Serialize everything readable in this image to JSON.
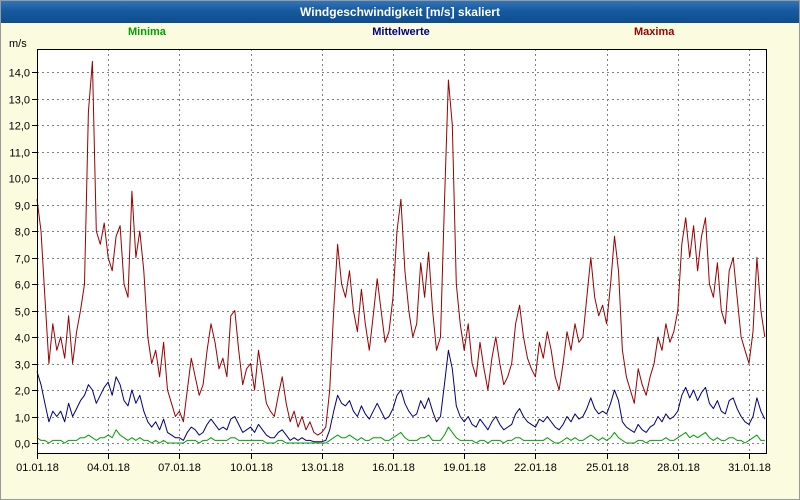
{
  "window": {
    "title": "Windgeschwindigkeit [m/s] skaliert"
  },
  "colors": {
    "titlebar_blue": "#155a9e",
    "page_background": "#fbfbe0",
    "plot_background": "#ffffff",
    "grid": "#808080",
    "axis": "#000000",
    "minima_green": "#00a000",
    "mittelwerte_blue": "#000080",
    "maxima_red": "#990000"
  },
  "chart_data": {
    "type": "line",
    "title": "Windgeschwindigkeit [m/s] skaliert",
    "legend_position": "top",
    "grid": "dashed",
    "sample_step_days": 0.1666667,
    "y_axis": {
      "unit_label": "m/s",
      "min": 0,
      "max": 14,
      "step": 1,
      "tick_labels": [
        "0,0",
        "1,0",
        "2,0",
        "3,0",
        "4,0",
        "5,0",
        "6,0",
        "7,0",
        "8,0",
        "9,0",
        "10,0",
        "11,0",
        "12,0",
        "13,0",
        "14,0"
      ]
    },
    "x_axis": {
      "tick_labels": [
        "01.01.18",
        "04.01.18",
        "07.01.18",
        "10.01.18",
        "13.01.18",
        "16.01.18",
        "19.01.18",
        "22.01.18",
        "25.01.18",
        "28.01.18",
        "31.01.18"
      ],
      "tick_days": [
        0,
        3,
        6,
        9,
        12,
        15,
        18,
        21,
        24,
        27,
        30
      ],
      "span_days": 30.76
    },
    "series": [
      {
        "name": "Minima",
        "color": "#00a000",
        "values": [
          0.2,
          0.1,
          0.1,
          0.0,
          0.1,
          0.1,
          0.1,
          0.0,
          0.1,
          0.1,
          0.1,
          0.2,
          0.2,
          0.3,
          0.2,
          0.1,
          0.2,
          0.2,
          0.3,
          0.2,
          0.5,
          0.3,
          0.2,
          0.1,
          0.2,
          0.1,
          0.2,
          0.1,
          0.1,
          0.0,
          0.1,
          0.0,
          0.1,
          0.0,
          0.0,
          0.0,
          0.0,
          0.0,
          0.1,
          0.1,
          0.1,
          0.0,
          0.1,
          0.1,
          0.2,
          0.1,
          0.1,
          0.1,
          0.1,
          0.2,
          0.2,
          0.1,
          0.1,
          0.1,
          0.1,
          0.1,
          0.1,
          0.1,
          0.0,
          0.0,
          0.0,
          0.1,
          0.1,
          0.0,
          0.0,
          0.0,
          0.0,
          0.0,
          0.0,
          0.0,
          0.0,
          0.0,
          0.0,
          0.0,
          0.1,
          0.2,
          0.3,
          0.2,
          0.2,
          0.3,
          0.2,
          0.1,
          0.2,
          0.1,
          0.1,
          0.2,
          0.2,
          0.2,
          0.1,
          0.1,
          0.2,
          0.3,
          0.4,
          0.2,
          0.1,
          0.1,
          0.1,
          0.2,
          0.2,
          0.3,
          0.1,
          0.1,
          0.1,
          0.3,
          0.6,
          0.4,
          0.2,
          0.1,
          0.1,
          0.1,
          0.1,
          0.0,
          0.1,
          0.1,
          0.0,
          0.1,
          0.1,
          0.1,
          0.0,
          0.1,
          0.1,
          0.2,
          0.2,
          0.1,
          0.1,
          0.1,
          0.1,
          0.1,
          0.1,
          0.2,
          0.1,
          0.0,
          0.0,
          0.1,
          0.2,
          0.1,
          0.2,
          0.1,
          0.1,
          0.2,
          0.3,
          0.2,
          0.1,
          0.2,
          0.1,
          0.2,
          0.4,
          0.2,
          0.1,
          0.0,
          0.0,
          0.0,
          0.1,
          0.1,
          0.0,
          0.1,
          0.1,
          0.1,
          0.1,
          0.2,
          0.1,
          0.1,
          0.2,
          0.3,
          0.4,
          0.2,
          0.3,
          0.2,
          0.3,
          0.4,
          0.2,
          0.1,
          0.2,
          0.1,
          0.1,
          0.2,
          0.2,
          0.1,
          0.1,
          0.0,
          0.1,
          0.2,
          0.3,
          0.1,
          0.1
        ]
      },
      {
        "name": "Mittelwerte",
        "color": "#000080",
        "values": [
          2.7,
          2.2,
          1.5,
          0.8,
          1.2,
          1.0,
          1.2,
          0.8,
          1.5,
          1.0,
          1.3,
          1.6,
          1.8,
          2.2,
          2.0,
          1.5,
          1.8,
          2.1,
          2.3,
          1.8,
          2.5,
          2.2,
          1.6,
          1.4,
          2.0,
          1.5,
          1.8,
          1.2,
          0.8,
          0.6,
          0.8,
          0.5,
          0.9,
          0.4,
          0.3,
          0.2,
          0.2,
          0.1,
          0.4,
          0.6,
          0.5,
          0.3,
          0.4,
          0.7,
          0.9,
          0.7,
          0.5,
          0.6,
          0.5,
          0.9,
          1.0,
          0.7,
          0.4,
          0.5,
          0.6,
          0.4,
          0.7,
          0.5,
          0.3,
          0.2,
          0.2,
          0.4,
          0.5,
          0.3,
          0.1,
          0.2,
          0.1,
          0.2,
          0.1,
          0.1,
          0.05,
          0.05,
          0.05,
          0.1,
          0.5,
          1.2,
          1.8,
          1.5,
          1.4,
          1.6,
          1.2,
          1.0,
          1.4,
          1.1,
          0.9,
          1.2,
          1.5,
          1.2,
          0.9,
          1.0,
          1.3,
          1.8,
          2.0,
          1.5,
          1.2,
          1.0,
          1.1,
          1.6,
          1.3,
          1.7,
          1.2,
          0.8,
          1.0,
          2.2,
          3.5,
          2.8,
          1.4,
          1.0,
          0.8,
          1.0,
          0.7,
          0.6,
          0.9,
          0.7,
          0.5,
          0.8,
          1.0,
          0.7,
          0.5,
          0.6,
          0.7,
          1.1,
          1.3,
          1.0,
          0.8,
          0.7,
          0.6,
          0.9,
          0.8,
          1.0,
          0.8,
          0.6,
          0.5,
          0.7,
          1.0,
          0.8,
          1.1,
          0.9,
          1.0,
          1.3,
          1.7,
          1.3,
          1.1,
          1.2,
          1.1,
          1.5,
          2.0,
          1.6,
          0.8,
          0.6,
          0.5,
          0.4,
          0.7,
          0.5,
          0.4,
          0.6,
          0.7,
          1.0,
          0.8,
          1.1,
          0.9,
          1.0,
          1.2,
          1.8,
          2.1,
          1.7,
          2.0,
          1.6,
          1.9,
          2.1,
          1.5,
          1.3,
          1.6,
          1.2,
          1.1,
          1.6,
          1.7,
          1.3,
          1.0,
          0.8,
          0.7,
          1.0,
          1.7,
          1.2,
          0.9
        ]
      },
      {
        "name": "Maxima",
        "color": "#990000",
        "values": [
          9.2,
          8.0,
          5.5,
          3.0,
          4.5,
          3.5,
          4.0,
          3.2,
          4.8,
          3.0,
          4.2,
          5.0,
          6.0,
          12.5,
          14.4,
          8.0,
          7.5,
          8.3,
          7.0,
          6.5,
          7.8,
          8.2,
          6.0,
          5.5,
          9.5,
          7.0,
          8.0,
          6.5,
          4.0,
          3.0,
          3.5,
          2.5,
          3.8,
          2.0,
          1.5,
          1.0,
          1.2,
          0.8,
          2.0,
          3.2,
          2.5,
          1.8,
          2.2,
          3.5,
          4.5,
          3.8,
          2.8,
          3.2,
          2.5,
          4.8,
          5.0,
          3.5,
          2.2,
          2.8,
          3.0,
          2.0,
          3.5,
          2.5,
          1.5,
          1.2,
          1.0,
          1.8,
          2.5,
          1.5,
          0.8,
          1.2,
          0.6,
          1.0,
          0.5,
          0.8,
          0.4,
          0.3,
          0.4,
          0.6,
          2.0,
          5.0,
          7.5,
          6.0,
          5.5,
          6.5,
          5.0,
          4.2,
          5.8,
          4.5,
          3.5,
          4.8,
          6.2,
          5.0,
          3.8,
          4.2,
          5.5,
          8.0,
          9.2,
          6.5,
          5.0,
          4.0,
          4.5,
          6.8,
          5.5,
          7.2,
          5.0,
          3.5,
          4.0,
          9.0,
          13.7,
          12.0,
          6.0,
          4.5,
          3.5,
          4.5,
          3.0,
          2.5,
          3.8,
          2.8,
          2.0,
          3.2,
          4.0,
          3.0,
          2.2,
          2.5,
          3.0,
          4.5,
          5.2,
          4.0,
          3.2,
          2.8,
          2.5,
          3.8,
          3.2,
          4.2,
          3.5,
          2.5,
          2.0,
          3.0,
          4.2,
          3.5,
          4.5,
          3.8,
          4.0,
          5.5,
          7.0,
          5.5,
          4.8,
          5.2,
          4.5,
          6.0,
          7.8,
          6.5,
          3.5,
          2.5,
          2.0,
          1.5,
          2.8,
          2.2,
          1.8,
          2.5,
          3.0,
          4.0,
          3.5,
          4.5,
          3.8,
          4.2,
          5.0,
          7.5,
          8.5,
          7.0,
          8.2,
          6.5,
          7.8,
          8.5,
          6.0,
          5.5,
          6.8,
          5.0,
          4.5,
          6.5,
          7.0,
          5.5,
          4.0,
          3.5,
          3.0,
          4.2,
          7.0,
          5.0,
          4.0
        ]
      }
    ]
  }
}
